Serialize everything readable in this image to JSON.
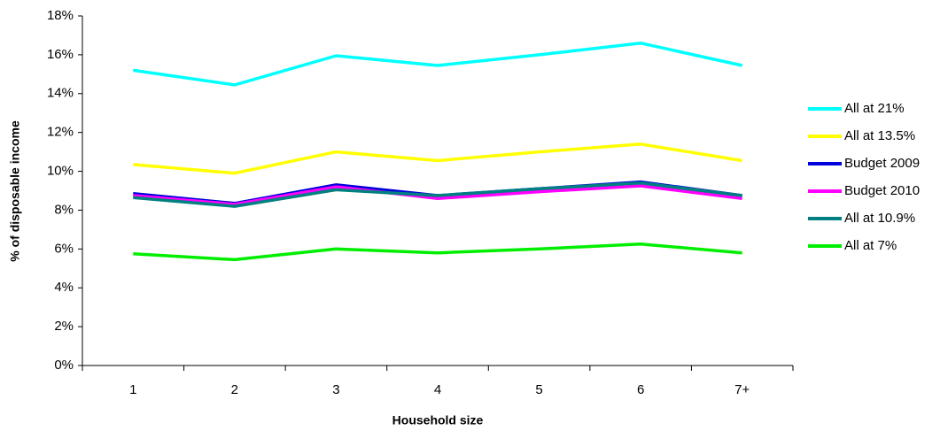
{
  "chart_data": {
    "type": "line",
    "x_label": "Household size",
    "y_label": "% of disposable income",
    "categories": [
      "1",
      "2",
      "3",
      "4",
      "5",
      "6",
      "7+"
    ],
    "series": [
      {
        "name": "All at 21%",
        "color": "#00ffff",
        "values": [
          15.2,
          14.45,
          15.95,
          15.45,
          16.0,
          16.6,
          15.45
        ]
      },
      {
        "name": "All at 13.5%",
        "color": "#ffff00",
        "values": [
          10.35,
          9.9,
          11.0,
          10.55,
          11.0,
          11.4,
          10.55
        ]
      },
      {
        "name": "Budget 2009",
        "color": "#0000dd",
        "values": [
          8.85,
          8.35,
          9.3,
          8.75,
          9.1,
          9.45,
          8.75
        ]
      },
      {
        "name": "Budget 2010",
        "color": "#ff00ff",
        "values": [
          8.75,
          8.3,
          9.2,
          8.6,
          8.95,
          9.25,
          8.6
        ]
      },
      {
        "name": "All at 10.9%",
        "color": "#008080",
        "values": [
          8.65,
          8.2,
          9.05,
          8.75,
          9.1,
          9.4,
          8.75
        ]
      },
      {
        "name": "All at 7%",
        "color": "#00ee00",
        "values": [
          5.75,
          5.45,
          6.0,
          5.8,
          6.0,
          6.25,
          5.8
        ]
      }
    ],
    "ylim": [
      0,
      18
    ],
    "yticks": [
      {
        "value": 0,
        "label": "0%"
      },
      {
        "value": 2,
        "label": "2%"
      },
      {
        "value": 4,
        "label": "4%"
      },
      {
        "value": 6,
        "label": "6%"
      },
      {
        "value": 8,
        "label": "8%"
      },
      {
        "value": 10,
        "label": "10%"
      },
      {
        "value": 12,
        "label": "12%"
      },
      {
        "value": 14,
        "label": "14%"
      },
      {
        "value": 16,
        "label": "16%"
      },
      {
        "value": 18,
        "label": "18%"
      }
    ],
    "grid": false,
    "legend": "right"
  }
}
